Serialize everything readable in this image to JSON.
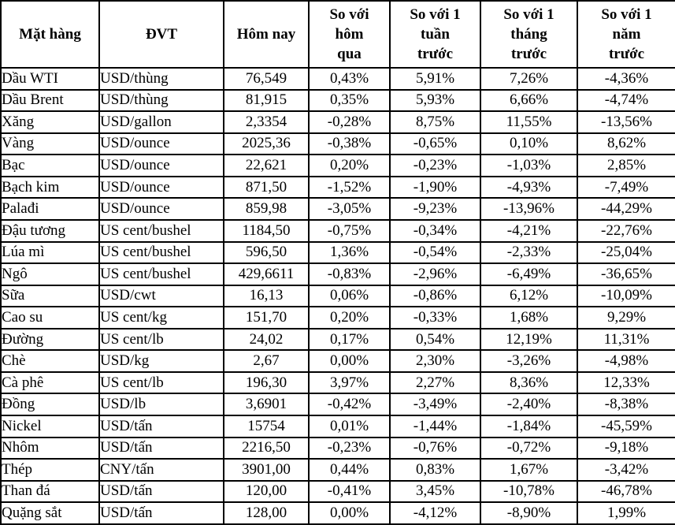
{
  "colors": {
    "background": "#FFFFFF",
    "border": "#000000",
    "text": "#000000"
  },
  "table": {
    "columns": [
      "Mặt hàng",
      "ĐVT",
      "Hôm nay",
      "So với\nhôm\nqua",
      "So với 1\ntuần\ntrước",
      "So với 1\ntháng\ntrước",
      "So với 1\nnăm\ntrước"
    ],
    "rows": [
      {
        "cells": [
          "Dầu WTI",
          "USD/thùng",
          "76,549",
          "0,43%",
          "5,91%",
          "7,26%",
          "-4,36%"
        ]
      },
      {
        "cells": [
          "Dầu Brent",
          "USD/thùng",
          "81,915",
          "0,35%",
          "5,93%",
          "6,66%",
          "-4,74%"
        ]
      },
      {
        "cells": [
          "Xăng",
          "USD/gallon",
          "2,3354",
          "-0,28%",
          "8,75%",
          "11,55%",
          "-13,56%"
        ]
      },
      {
        "cells": [
          "Vàng",
          "USD/ounce",
          "2025,36",
          "-0,38%",
          "-0,65%",
          "0,10%",
          "8,62%"
        ]
      },
      {
        "cells": [
          "Bạc",
          "USD/ounce",
          "22,621",
          "0,20%",
          "-0,23%",
          "-1,03%",
          "2,85%"
        ]
      },
      {
        "cells": [
          "Bạch kim",
          "USD/ounce",
          "871,50",
          "-1,52%",
          "-1,90%",
          "-4,93%",
          "-7,49%"
        ]
      },
      {
        "cells": [
          "Palađi",
          "USD/ounce",
          "859,98",
          "-3,05%",
          "-9,23%",
          "-13,96%",
          "-44,29%"
        ]
      },
      {
        "cells": [
          "Đậu tương",
          "US cent/bushel",
          "1184,50",
          "-0,75%",
          "-0,34%",
          "-4,21%",
          "-22,76%"
        ]
      },
      {
        "cells": [
          "Lúa mì",
          "US cent/bushel",
          "596,50",
          "1,36%",
          "-0,54%",
          "-2,33%",
          "-25,04%"
        ]
      },
      {
        "cells": [
          "Ngô",
          "US cent/bushel",
          "429,6611",
          "-0,83%",
          "-2,96%",
          "-6,49%",
          "-36,65%"
        ]
      },
      {
        "cells": [
          "Sữa",
          "USD/cwt",
          "16,13",
          "0,06%",
          "-0,86%",
          "6,12%",
          "-10,09%"
        ]
      },
      {
        "cells": [
          "Cao su",
          "US cent/kg",
          "151,70",
          "0,20%",
          "-0,33%",
          "1,68%",
          "9,29%"
        ]
      },
      {
        "cells": [
          "Đường",
          "US cent/lb",
          "24,02",
          "0,17%",
          "0,54%",
          "12,19%",
          "11,31%"
        ]
      },
      {
        "cells": [
          "Chè",
          "USD/kg",
          "2,67",
          "0,00%",
          "2,30%",
          "-3,26%",
          "-4,98%"
        ]
      },
      {
        "cells": [
          "Cà phê",
          "US cent/lb",
          "196,30",
          "3,97%",
          "2,27%",
          "8,36%",
          "12,33%"
        ]
      },
      {
        "cells": [
          "Đồng",
          "USD/lb",
          "3,6901",
          "-0,42%",
          "-3,49%",
          "-2,40%",
          "-8,38%"
        ]
      },
      {
        "cells": [
          "Nickel",
          "USD/tấn",
          "15754",
          "0,01%",
          "-1,44%",
          "-1,84%",
          "-45,59%"
        ]
      },
      {
        "cells": [
          "Nhôm",
          "USD/tấn",
          "2216,50",
          "-0,23%",
          "-0,76%",
          "-0,72%",
          "-9,18%"
        ]
      },
      {
        "cells": [
          "Thép",
          "CNY/tấn",
          "3901,00",
          "0,44%",
          "0,83%",
          "1,67%",
          "-3,42%"
        ]
      },
      {
        "cells": [
          "Than đá",
          "USD/tấn",
          "120,00",
          "-0,41%",
          "3,45%",
          "-10,78%",
          "-46,78%"
        ]
      },
      {
        "cells": [
          "Quặng sắt",
          "USD/tấn",
          "128,00",
          "0,00%",
          "-4,12%",
          "-8,90%",
          "1,99%"
        ]
      }
    ]
  }
}
